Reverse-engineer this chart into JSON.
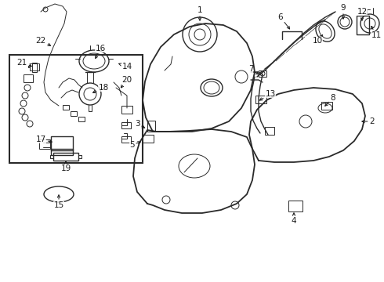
{
  "bg_color": "#ffffff",
  "line_color": "#2a2a2a",
  "text_color": "#1a1a1a",
  "figsize": [
    4.9,
    3.6
  ],
  "dpi": 100,
  "xlim": [
    0,
    490
  ],
  "ylim": [
    0,
    360
  ]
}
